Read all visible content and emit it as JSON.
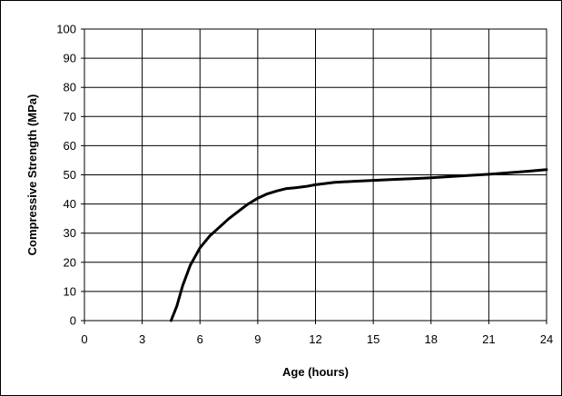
{
  "chart_data": {
    "type": "line",
    "title": "",
    "xlabel": "Age (hours)",
    "ylabel": "Compressive Strength (MPa)",
    "xlim": [
      0,
      24
    ],
    "ylim": [
      0,
      100
    ],
    "x_ticks": [
      0,
      3,
      6,
      9,
      12,
      15,
      18,
      21,
      24
    ],
    "y_ticks": [
      0,
      10,
      20,
      30,
      40,
      50,
      60,
      70,
      80,
      90,
      100
    ],
    "grid": true,
    "legend": "none",
    "series": [
      {
        "color": "#000000",
        "x": [
          4.5,
          4.8,
          5.1,
          5.5,
          6.0,
          6.5,
          7.0,
          7.5,
          8.0,
          8.5,
          9.0,
          9.5,
          10.0,
          10.5,
          11.0,
          11.5,
          12.0,
          13.0,
          14.0,
          15.0,
          16.0,
          17.0,
          18.0,
          19.0,
          20.0,
          21.0,
          22.0,
          23.0,
          24.0
        ],
        "y": [
          0,
          5,
          12,
          19,
          25,
          29,
          32,
          35,
          37.5,
          40,
          42,
          43.5,
          44.5,
          45.3,
          45.6,
          46.0,
          46.6,
          47.4,
          47.8,
          48.1,
          48.4,
          48.7,
          49.0,
          49.4,
          49.8,
          50.2,
          50.7,
          51.2,
          51.8
        ]
      }
    ]
  }
}
